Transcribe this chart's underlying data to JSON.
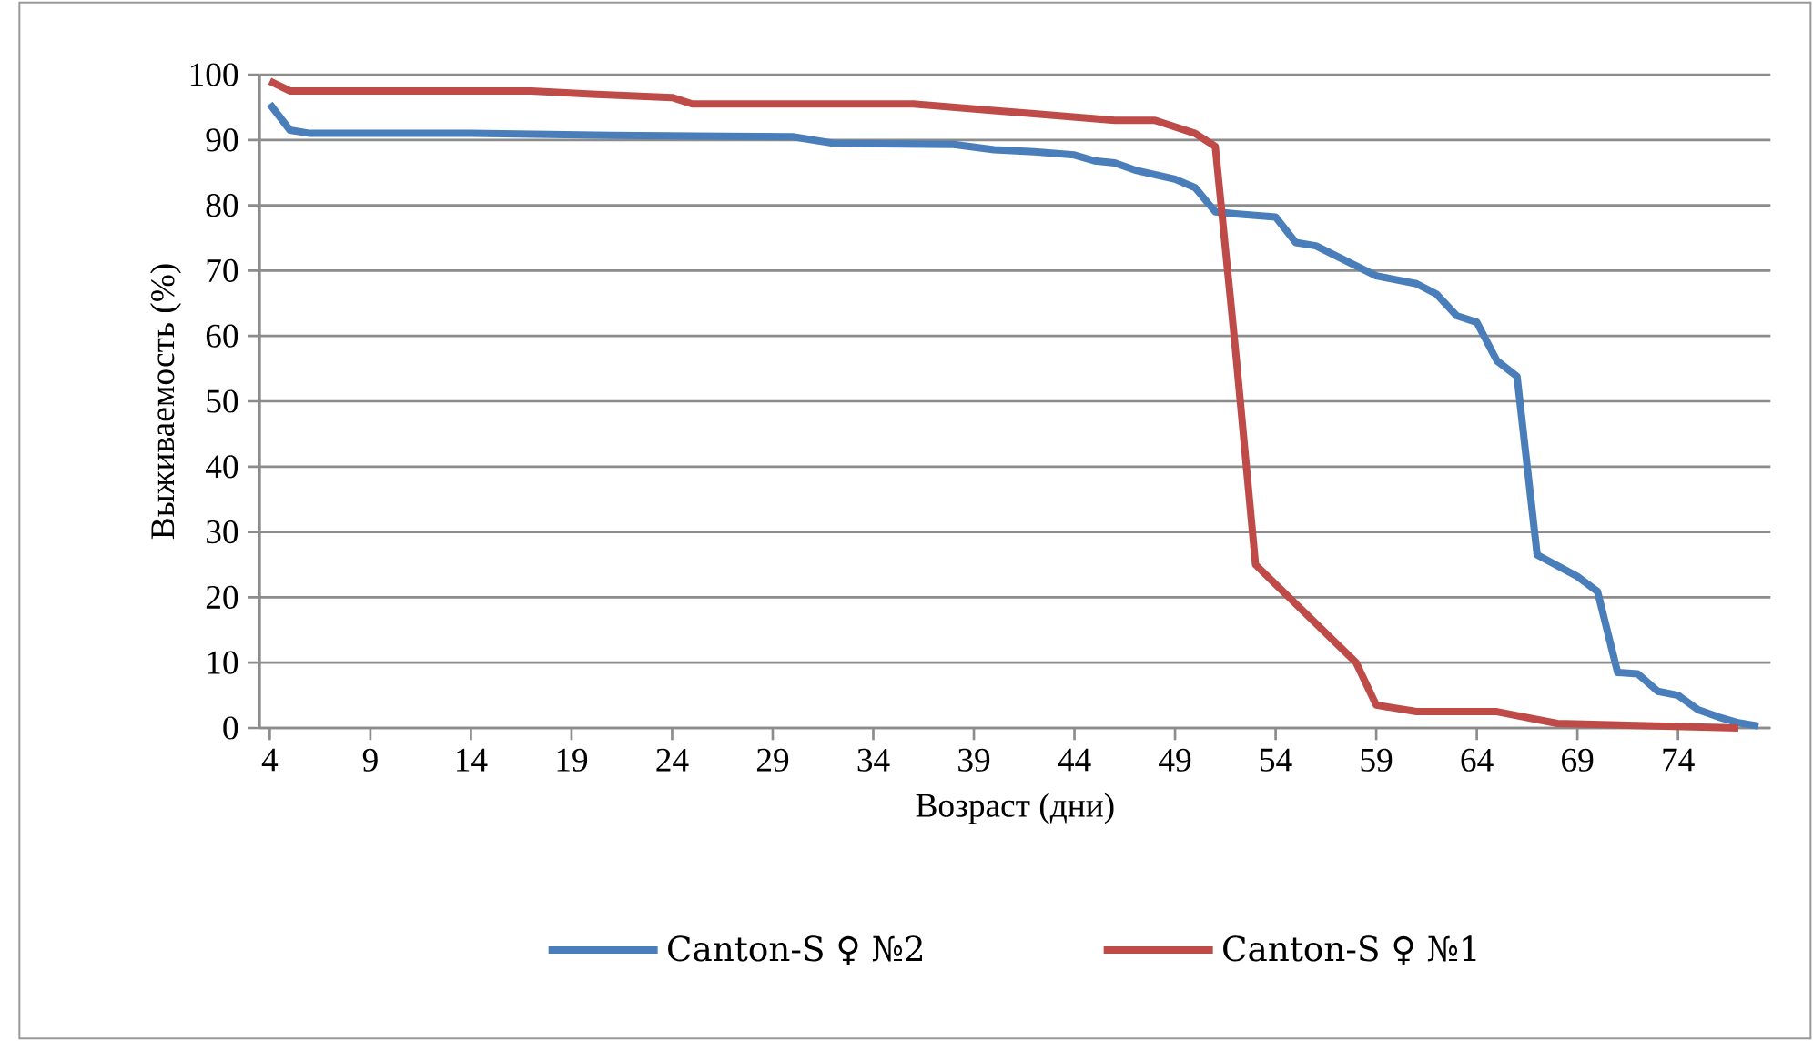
{
  "chart_data": {
    "type": "line",
    "xlabel": "Возраст (дни)",
    "ylabel": "Выживаемость (%)",
    "xlim": [
      3.5,
      78.6
    ],
    "xticks": [
      4,
      9,
      14,
      19,
      24,
      29,
      34,
      39,
      44,
      49,
      54,
      59,
      64,
      69,
      74
    ],
    "ylim": [
      0,
      100
    ],
    "yticks": [
      0,
      10,
      20,
      30,
      40,
      50,
      60,
      70,
      80,
      90,
      100
    ],
    "grid": "y",
    "legend": "bottom",
    "marker": "none",
    "line_style": "solid",
    "series": [
      {
        "name": "Canton-S ♀ №2",
        "color": "#4a7ebb",
        "x": [
          4,
          5,
          6,
          14,
          21,
          30,
          32,
          38,
          40,
          42,
          44,
          45,
          46,
          47,
          49,
          50,
          51,
          52,
          54,
          55,
          56,
          59,
          61,
          62,
          63,
          64,
          65,
          66,
          67,
          69,
          70,
          71,
          72,
          73,
          74,
          75,
          76,
          77,
          78
        ],
        "values": [
          95.5,
          91.5,
          91,
          91,
          90.7,
          90.5,
          89.5,
          89.3,
          88.5,
          88.2,
          87.7,
          86.8,
          86.5,
          85.4,
          84,
          82.7,
          79,
          78.7,
          78.2,
          74.3,
          73.8,
          69.2,
          68,
          66.4,
          63.1,
          62.1,
          56.2,
          53.8,
          26.5,
          23.2,
          20.9,
          8.5,
          8.3,
          5.6,
          5,
          2.8,
          1.7,
          0.8,
          0.3
        ]
      },
      {
        "name": "Canton-S ♀ №1",
        "color": "#be4b48",
        "x": [
          4,
          5,
          17,
          20,
          24,
          25,
          36,
          38,
          40,
          42,
          44,
          46,
          48,
          50,
          51,
          52,
          53,
          54,
          55,
          56,
          57,
          58,
          59,
          61,
          65,
          68,
          77
        ],
        "values": [
          99,
          97.5,
          97.5,
          97,
          96.5,
          95.5,
          95.5,
          95,
          94.5,
          94,
          93.5,
          93,
          93,
          91,
          89,
          58,
          25,
          22,
          19,
          16,
          13,
          10,
          3.5,
          2.5,
          2.5,
          0.7,
          0
        ]
      }
    ]
  }
}
